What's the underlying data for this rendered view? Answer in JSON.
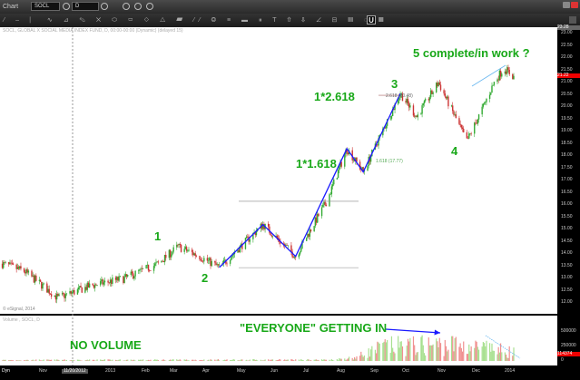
{
  "window": {
    "title": "Chart",
    "symbol": "SOCL",
    "interval": "D"
  },
  "toolbar": {
    "u_button": "U"
  },
  "chart": {
    "info": "SOCL, GLOBAL X SOCIAL MEDIA INDEX FUND, D, 00:00-00:00 (Dynamic) (delayed 15)",
    "copyright": "© eSignal, 2014",
    "volume_title": "Volume , SOCL, D",
    "price_ticks": [
      "23.00",
      "22.50",
      "22.00",
      "21.50",
      "21.00",
      "20.50",
      "20.00",
      "19.50",
      "19.00",
      "18.50",
      "18.00",
      "17.50",
      "17.00",
      "16.50",
      "16.00",
      "15.50",
      "15.00",
      "14.50",
      "14.00",
      "13.50",
      "13.00",
      "12.50",
      "12.00"
    ],
    "price_top": "23.28",
    "last_price": "21.22",
    "volume_ticks": [
      "500000",
      "250000",
      "0"
    ],
    "last_volume": "114374",
    "time_labels": [
      "Nov",
      "2013",
      "Feb",
      "Mar",
      "Apr",
      "May",
      "Jun",
      "Jul",
      "Aug",
      "Sep",
      "Oct",
      "Nov",
      "Dec",
      "2014"
    ],
    "cursor_date": "11/20/2012",
    "dyn_label": "Dyn",
    "fib_labels": [
      "2.618 (20.48)",
      "1.618 (17.77)"
    ],
    "annotations": {
      "w1": "1",
      "w2": "2",
      "w3": "3",
      "w4": "4",
      "w5": "5 complete/in work ?",
      "ext2618": "1*2.618",
      "ext1618": "1*1.618",
      "everyone": "\"EVERYONE\" GETTING IN",
      "novolume": "NO VOLUME"
    },
    "colors": {
      "up": "#33aa33",
      "down": "#cc3333",
      "vol_up": "#a8e090",
      "vol_down": "#f09090",
      "wave_line": "#1a1aff",
      "annotation": "#18a818",
      "last_badge": "#e00000"
    }
  },
  "chart_data": {
    "type": "candlestick",
    "price_range": [
      11.6,
      23.28
    ],
    "price_path": [
      [
        "2012-09-25",
        13.6
      ],
      [
        "2012-10-15",
        13.3
      ],
      [
        "2012-11-15",
        12.2
      ],
      [
        "2012-12-15",
        12.7
      ],
      [
        "2013-01-15",
        13.0
      ],
      [
        "2013-02-15",
        13.6
      ],
      [
        "2013-03-05",
        14.3
      ],
      [
        "2013-03-25",
        13.9
      ],
      [
        "2013-04-12",
        13.45
      ],
      [
        "2013-05-22",
        15.2
      ],
      [
        "2013-06-21",
        13.9
      ],
      [
        "2013-07-20",
        16.2
      ],
      [
        "2013-08-07",
        18.3
      ],
      [
        "2013-08-22",
        17.35
      ],
      [
        "2013-09-25",
        20.55
      ],
      [
        "2013-10-10",
        19.6
      ],
      [
        "2013-10-30",
        21.0
      ],
      [
        "2013-11-12",
        19.8
      ],
      [
        "2013-11-25",
        18.6
      ],
      [
        "2013-12-10",
        20.0
      ],
      [
        "2013-12-20",
        21.0
      ],
      [
        "2013-12-29",
        21.6
      ],
      [
        "2014-01-07",
        21.22
      ]
    ],
    "wave_line": [
      [
        "2013-04-12",
        13.45
      ],
      [
        "2013-05-22",
        15.2
      ],
      [
        "2013-06-21",
        13.9
      ],
      [
        "2013-08-07",
        18.3
      ],
      [
        "2013-08-22",
        17.35
      ],
      [
        "2013-09-25",
        20.55
      ]
    ],
    "levels": [
      16.15,
      13.44
    ],
    "volume_levels": [
      [
        "2012-09-25",
        15000
      ],
      [
        "2013-07-25",
        20000
      ],
      [
        "2013-08-15",
        60000
      ],
      [
        "2013-09-10",
        250000
      ],
      [
        "2013-11-15",
        280000
      ],
      [
        "2014-01-07",
        150000
      ]
    ],
    "volume_range": [
      0,
      700000
    ]
  }
}
